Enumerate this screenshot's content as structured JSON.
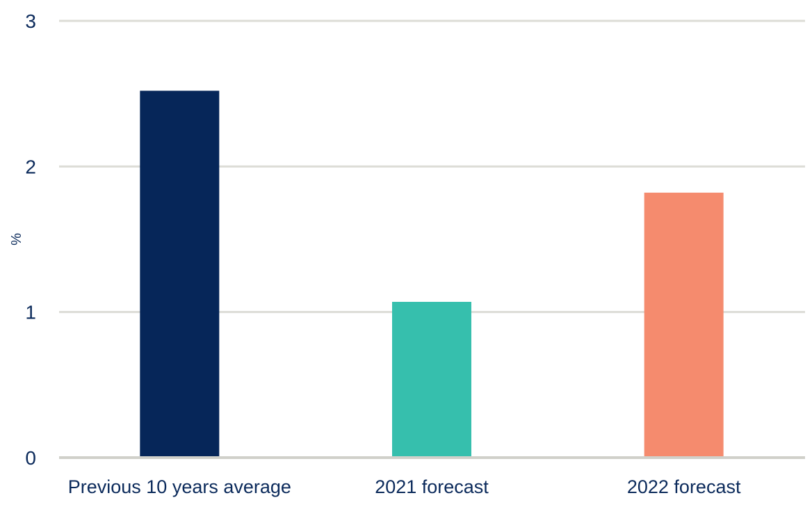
{
  "chart_data": {
    "type": "bar",
    "categories": [
      "Previous 10 years average",
      "2021 forecast",
      "2022 forecast"
    ],
    "values": [
      2.52,
      1.07,
      1.82
    ],
    "colors": [
      "#062659",
      "#36bfad",
      "#f58b6e"
    ],
    "title": "",
    "xlabel": "",
    "ylabel": "%",
    "ylim": [
      0,
      3
    ],
    "yticks": [
      "0",
      "1",
      "2",
      "3"
    ],
    "grid": true,
    "legend": "none"
  }
}
